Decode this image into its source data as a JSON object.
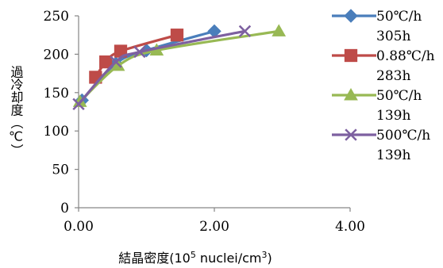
{
  "chart_data": {
    "type": "scatter",
    "title": "",
    "xlabel_main": "結晶密度(10",
    "xlabel_sup": "5",
    "xlabel_mid": " nuclei/cm",
    "xlabel_sup2": "3",
    "xlabel_end": ")",
    "ylabel": "過冷却度（℃）",
    "xlim": [
      0,
      4
    ],
    "ylim": [
      0,
      250
    ],
    "x_ticks": [
      "0.00",
      "2.00",
      "4.00"
    ],
    "x_tick_values": [
      0,
      2,
      4
    ],
    "y_ticks": [
      "0",
      "50",
      "100",
      "150",
      "200",
      "250"
    ],
    "y_tick_values": [
      0,
      50,
      100,
      150,
      200,
      250
    ],
    "grid": false,
    "legend_position": "right",
    "series": [
      {
        "name": "50℃/h 305h",
        "label_line1": "50℃/h",
        "label_line2": "305h",
        "color": "#4a7ebb",
        "marker": "diamond",
        "x": [
          0.05,
          0.55,
          1.0,
          2.0
        ],
        "y": [
          140,
          188,
          205,
          230
        ]
      },
      {
        "name": "0.88℃/h 283h",
        "label_line1": "0.88℃/h",
        "label_line2": "283h",
        "color": "#be4b48",
        "marker": "square",
        "x": [
          0.25,
          0.4,
          0.62,
          1.45
        ],
        "y": [
          170,
          190,
          204,
          225
        ]
      },
      {
        "name": "50℃/h 139h",
        "label_line1": "50℃/h",
        "label_line2": "139h",
        "color": "#98b954",
        "marker": "triangle",
        "x": [
          0.02,
          0.58,
          1.15,
          2.95
        ],
        "y": [
          138,
          185,
          205,
          230
        ]
      },
      {
        "name": "500℃/h 139h",
        "label_line1": "500℃/h",
        "label_line2": "139h",
        "color": "#7d60a0",
        "marker": "x",
        "x": [
          0.0,
          0.55,
          0.9,
          2.45
        ],
        "y": [
          135,
          190,
          203,
          230
        ]
      }
    ]
  }
}
